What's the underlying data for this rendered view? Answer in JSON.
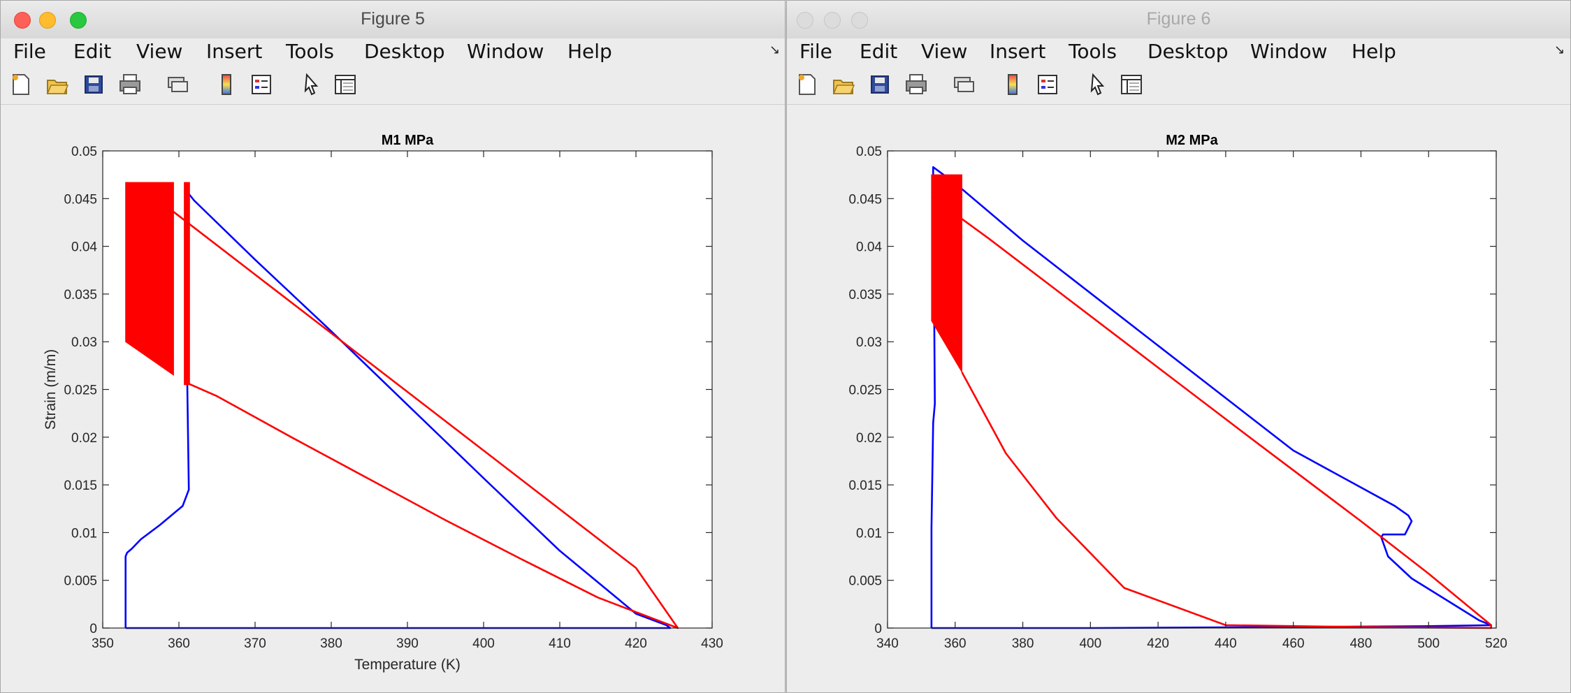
{
  "colors": {
    "accent_red": "#ff0000",
    "series_blue": "#0000ff"
  },
  "windows": [
    {
      "title": "Figure 5",
      "active": true,
      "menu": [
        "File",
        "Edit",
        "View",
        "Insert",
        "Tools",
        "Desktop",
        "Window",
        "Help"
      ],
      "toolbar_icons": [
        "new-figure-icon",
        "open-file-icon",
        "save-icon",
        "print-icon",
        "link-icon",
        "colorbar-icon",
        "legend-icon",
        "pointer-icon",
        "property-inspector-icon"
      ],
      "chart_data": {
        "type": "line",
        "title": "M1 MPa",
        "xlabel": "Temperature (K)",
        "ylabel": "Strain (m/m)",
        "xlim": [
          350,
          430
        ],
        "ylim": [
          0,
          0.05
        ],
        "xticks": [
          "350",
          "360",
          "370",
          "380",
          "390",
          "400",
          "410",
          "420",
          "430"
        ],
        "yticks": [
          "0",
          "0.005",
          "0.01",
          "0.015",
          "0.02",
          "0.025",
          "0.03",
          "0.035",
          "0.04",
          "0.045",
          "0.05"
        ],
        "grid": false,
        "series": [
          {
            "color": "#0000ff",
            "x": [
              353.0,
              353.0,
              353.2,
              353.8,
              355.0,
              357.5,
              360.5,
              361.3,
              361.2,
              361.1,
              361.1,
              361.3,
              362.0,
              370.0,
              380.0,
              390.0,
              400.0,
              410.0,
              420.0,
              424.0,
              424.5,
              424.0,
              400.0,
              380.0,
              360.0,
              354.0,
              353.0
            ],
            "y": [
              0.0,
              0.0075,
              0.0079,
              0.0083,
              0.0093,
              0.0108,
              0.0128,
              0.0145,
              0.02,
              0.0255,
              0.03,
              0.0455,
              0.0448,
              0.0386,
              0.0311,
              0.0234,
              0.0157,
              0.0081,
              0.0015,
              0.0003,
              0.0,
              0.0,
              0.0,
              0.0,
              0.0,
              0.0,
              0.0
            ]
          },
          {
            "color": "#ff0000",
            "x": [
              359.0,
              380.0,
              400.0,
              420.0,
              425.5,
              415.0,
              405.0,
              395.0,
              385.0,
              375.0,
              365.0,
              361.0
            ],
            "y": [
              0.0438,
              0.0309,
              0.0186,
              0.0063,
              0.0,
              0.0032,
              0.0072,
              0.0113,
              0.0156,
              0.0199,
              0.0243,
              0.0257
            ]
          },
          {
            "color": "#ff0000",
            "fill": true,
            "x": [
              353.0,
              359.3,
              359.3,
              353.0
            ],
            "y": [
              0.0467,
              0.0467,
              0.0265,
              0.03
            ]
          },
          {
            "color": "#ff0000",
            "fill": true,
            "x": [
              360.7,
              361.4,
              361.4,
              360.7
            ],
            "y": [
              0.0467,
              0.0467,
              0.0255,
              0.0255
            ]
          }
        ]
      }
    },
    {
      "title": "Figure 6",
      "active": false,
      "menu": [
        "File",
        "Edit",
        "View",
        "Insert",
        "Tools",
        "Desktop",
        "Window",
        "Help"
      ],
      "toolbar_icons": [
        "new-figure-icon",
        "open-file-icon",
        "save-icon",
        "print-icon",
        "link-icon",
        "colorbar-icon",
        "legend-icon",
        "pointer-icon",
        "property-inspector-icon"
      ],
      "chart_data": {
        "type": "line",
        "title": "M2 MPa",
        "xlabel": "",
        "ylabel": "",
        "xlim": [
          340,
          520
        ],
        "ylim": [
          0,
          0.05
        ],
        "xticks": [
          "340",
          "360",
          "380",
          "400",
          "420",
          "440",
          "460",
          "480",
          "500",
          "520"
        ],
        "yticks": [
          "0",
          "0.005",
          "0.01",
          "0.015",
          "0.02",
          "0.025",
          "0.03",
          "0.035",
          "0.04",
          "0.045",
          "0.05"
        ],
        "grid": false,
        "series": [
          {
            "color": "#0000ff",
            "x": [
              353.0,
              353.0,
              353.5,
              354.0,
              353.8,
              353.5,
              353.5,
              360.0,
              380.0,
              420.0,
              460.0,
              490.0,
              494.0,
              495.0,
              493.0,
              486.5,
              486.0,
              488.0,
              495.0,
              505.0,
              515.0,
              518.5,
              500.0,
              460.0,
              400.0,
              360.0,
              353.0
            ],
            "y": [
              0.0,
              0.0105,
              0.0215,
              0.0235,
              0.033,
              0.045,
              0.0483,
              0.0466,
              0.0406,
              0.0296,
              0.0186,
              0.0128,
              0.0118,
              0.0112,
              0.0098,
              0.0098,
              0.0095,
              0.0075,
              0.0052,
              0.003,
              0.0008,
              0.0003,
              0.0002,
              0.0001,
              0.0,
              0.0,
              0.0
            ]
          },
          {
            "color": "#ff0000",
            "x": [
              353.0,
              370.0,
              390.0,
              410.0,
              430.0,
              450.0,
              480.0,
              500.0,
              518.5,
              518.5,
              480.0,
              440.0,
              410.0,
              390.0,
              375.0,
              362.0
            ],
            "y": [
              0.0452,
              0.0408,
              0.0354,
              0.03,
              0.0246,
              0.0192,
              0.0112,
              0.0057,
              0.0003,
              0.0,
              0.0001,
              0.0003,
              0.0042,
              0.0115,
              0.0183,
              0.0268
            ]
          },
          {
            "color": "#ff0000",
            "fill": true,
            "x": [
              353.0,
              362.0,
              362.0,
              353.0
            ],
            "y": [
              0.0475,
              0.0475,
              0.0268,
              0.0322
            ]
          }
        ]
      }
    }
  ]
}
